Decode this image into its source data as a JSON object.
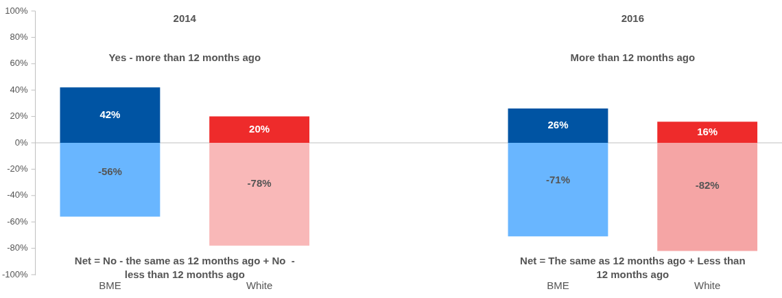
{
  "chart_data": {
    "type": "bar",
    "stacked": true,
    "categories": [
      "BME",
      "White",
      null,
      "BME",
      "White"
    ],
    "series": [
      {
        "values": [
          42,
          20,
          null,
          26,
          16
        ],
        "colors": [
          "#0054a3",
          "#ee2b2b",
          "#ffffff",
          "#0054a3",
          "#ee2b2b"
        ],
        "value_labels": [
          "42%",
          "20%",
          null,
          "26%",
          "16%"
        ]
      },
      {
        "values": [
          -56,
          -78,
          null,
          -71,
          -82
        ],
        "colors": [
          "#69b6ff",
          "#f9b8b8",
          "#ffffff",
          "#69b6ff",
          "#f5a5a5"
        ],
        "value_labels": [
          "-56%",
          "-78%",
          null,
          "-71%",
          "-82%"
        ]
      }
    ],
    "ylim": [
      -100,
      100
    ],
    "yticks": [
      {
        "value": -100,
        "label": "-100%"
      },
      {
        "value": -80,
        "label": "-80%"
      },
      {
        "value": -60,
        "label": "-60%"
      },
      {
        "value": -40,
        "label": "-40%"
      },
      {
        "value": -20,
        "label": "-20%"
      },
      {
        "value": 0,
        "label": "0%"
      },
      {
        "value": 20,
        "label": "20%"
      },
      {
        "value": 40,
        "label": "40%"
      },
      {
        "value": 60,
        "label": "60%"
      },
      {
        "value": 80,
        "label": "80%"
      },
      {
        "value": 100,
        "label": "100%"
      }
    ],
    "grid": false,
    "legend": false,
    "ref_lines": [
      {
        "axis": "y",
        "value": 0,
        "color": "#bfbfbf"
      }
    ],
    "annotations": [
      "2014",
      "Yes - more than 12 months ago",
      "Net = No - the same as 12 months ago + No  - less than 12 months ago",
      "2016",
      "More than 12 months ago",
      "Net = The same as 12 months ago + Less than 12 months ago"
    ]
  }
}
